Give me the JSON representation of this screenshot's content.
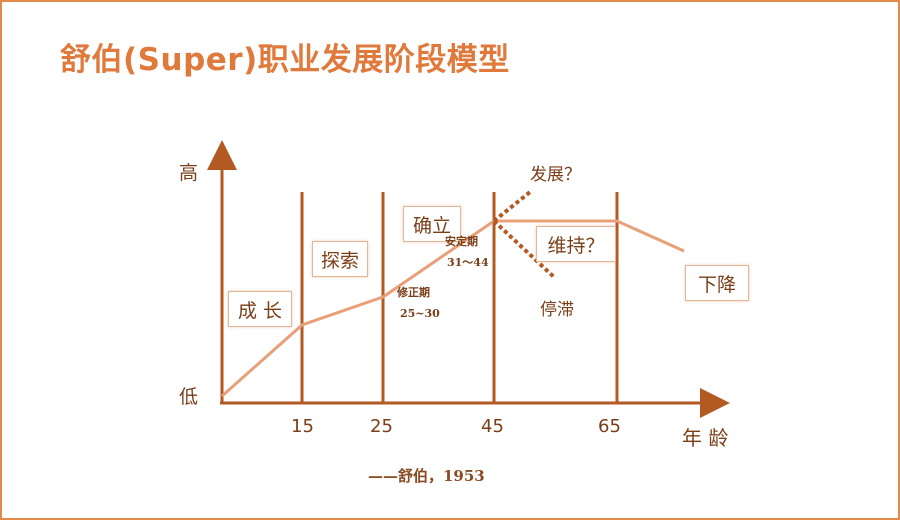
{
  "title": "舒伯(Super)职业发展阶段模型",
  "axis": {
    "y_high": "高",
    "y_low": "低",
    "x_label": "年 龄",
    "ticks": [
      "15",
      "25",
      "45",
      "65"
    ]
  },
  "stages": {
    "growth": "成 长",
    "exploration": "探索",
    "establishment": "确立",
    "maintenance": "维持？",
    "decline": "下降"
  },
  "notes": {
    "correction": "修正期",
    "correction_ages": "25~30",
    "stable": "安定期",
    "stable_ages": "31～44",
    "develop": "发展？",
    "stagnate": "停滞"
  },
  "citation": "——舒伯，1953",
  "colors": {
    "accent": "#e07a3c",
    "axis": "#b35a22",
    "curve": "#e8a078",
    "text": "#7a3e18"
  }
}
